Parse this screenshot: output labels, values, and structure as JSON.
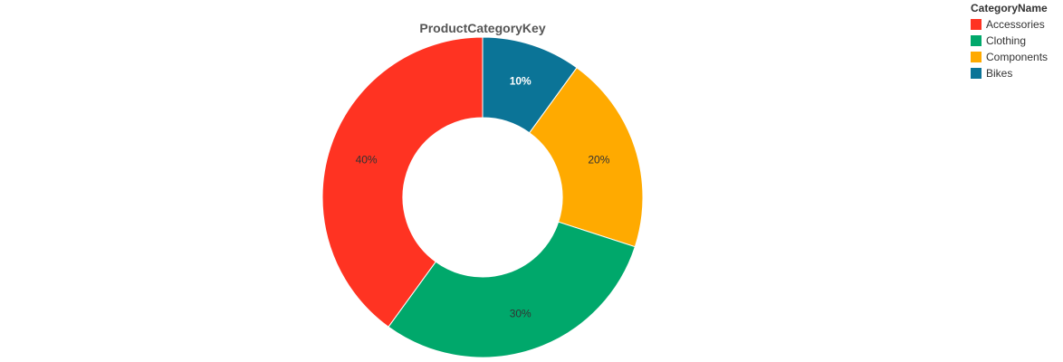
{
  "chart_data": {
    "type": "pie",
    "donut": true,
    "title": "ProductCategoryKey",
    "legend_title": "CategoryName",
    "legend_position": "top-right",
    "slices": [
      {
        "name": "Bikes",
        "value": 10,
        "label": "10%",
        "color": "#0b7497"
      },
      {
        "name": "Components",
        "value": 20,
        "label": "20%",
        "color": "#ffaa00"
      },
      {
        "name": "Clothing",
        "value": 30,
        "label": "30%",
        "color": "#00a86b"
      },
      {
        "name": "Accessories",
        "value": 40,
        "label": "40%",
        "color": "#ff3322"
      }
    ],
    "legend_order": [
      "Accessories",
      "Clothing",
      "Components",
      "Bikes"
    ]
  }
}
